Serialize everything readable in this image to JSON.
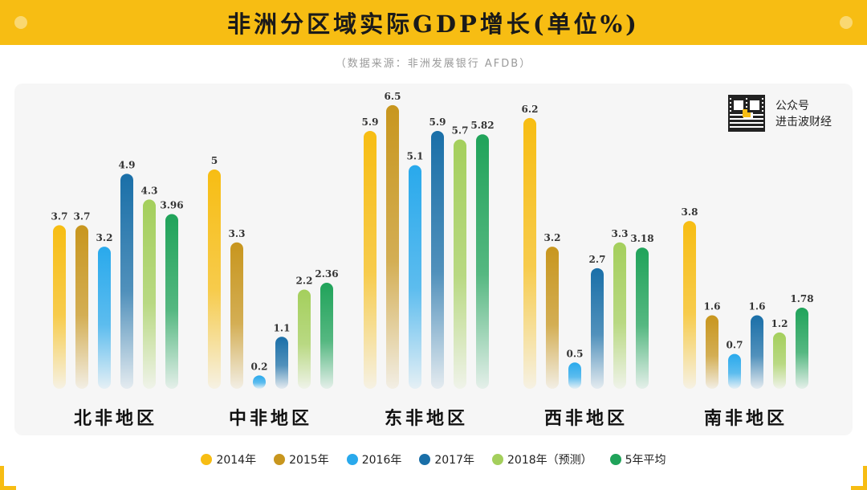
{
  "title": "非洲分区域实际GDP增长(单位%)",
  "source": "（数据来源：非洲发展银行 AFDB）",
  "wechat": {
    "line1": "公众号",
    "line2": "进击波财经"
  },
  "colors": {
    "banner": "#f7bd13",
    "series": [
      "#f7bd13",
      "#c8961e",
      "#29a9ec",
      "#1a6fa8",
      "#a4cf5c",
      "#20a35a"
    ]
  },
  "chart_data": {
    "type": "bar",
    "title": "非洲分区域实际GDP增长(单位%)",
    "categories": [
      "北非地区",
      "中非地区",
      "东非地区",
      "西非地区",
      "南非地区"
    ],
    "series": [
      {
        "name": "2014年",
        "values": [
          3.7,
          5,
          5.9,
          6.2,
          3.8
        ],
        "labels": [
          "3.7",
          "5",
          "5.9",
          "6.2",
          "3.8"
        ]
      },
      {
        "name": "2015年",
        "values": [
          3.7,
          3.3,
          6.5,
          3.2,
          1.6
        ],
        "labels": [
          "3.7",
          "3.3",
          "6.5",
          "3.2",
          "1.6"
        ]
      },
      {
        "name": "2016年",
        "values": [
          3.2,
          0.2,
          5.1,
          0.5,
          0.7
        ],
        "labels": [
          "3.2",
          "0.2",
          "5.1",
          "0.5",
          "0.7"
        ]
      },
      {
        "name": "2017年",
        "values": [
          4.9,
          1.1,
          5.9,
          2.7,
          1.6
        ],
        "labels": [
          "4.9",
          "1.1",
          "5.9",
          "2.7",
          "1.6"
        ]
      },
      {
        "name": "2018年（预测）",
        "values": [
          4.3,
          2.2,
          5.7,
          3.3,
          1.2
        ],
        "labels": [
          "4.3",
          "2.2",
          "5.7",
          "3.3",
          "1.2"
        ]
      },
      {
        "name": "5年平均",
        "values": [
          3.96,
          2.36,
          5.82,
          3.18,
          1.78
        ],
        "labels": [
          "3.96",
          "2.36",
          "5.82",
          "3.18",
          "1.78"
        ]
      }
    ],
    "ylim": [
      0,
      6.5
    ],
    "grid": false,
    "legend_position": "bottom"
  }
}
